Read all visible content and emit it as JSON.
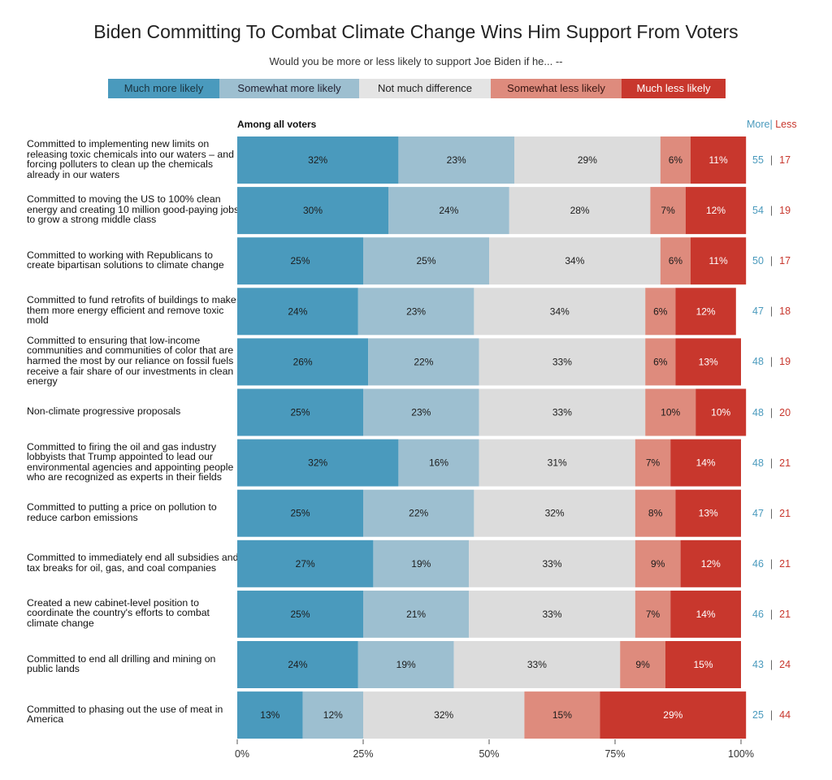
{
  "chart_data": {
    "type": "bar",
    "orientation": "horizontal",
    "stacked": true,
    "title": "Biden Committing To Combat Climate Change Wins Him Support From Voters",
    "subtitle": "Would you be more or less likely to support Joe Biden if he... --",
    "section_label": "Among all voters",
    "more_less_header": {
      "more": "More",
      "less": "Less"
    },
    "series": [
      {
        "name": "Much more likely",
        "color": "#4a9abd"
      },
      {
        "name": "Somewhat more likely",
        "color": "#9dbfd0"
      },
      {
        "name": "Not much difference",
        "color": "#dcdcdc"
      },
      {
        "name": "Somewhat less likely",
        "color": "#de8b7d"
      },
      {
        "name": "Much less likely",
        "color": "#c8372d"
      }
    ],
    "categories": [
      "Committed to implementing new limits on releasing toxic chemicals into our waters – and forcing polluters to clean up the chemicals already in our waters",
      "Committed to moving the US to 100% clean energy and creating 10 million good-paying jobs to grow a strong middle class",
      "Committed to working with Republicans to create bipartisan solutions to climate change",
      "Committed to fund retrofits of buildings to make them more energy efficient and remove toxic mold",
      "Committed to ensuring that low-income communities and communities of color that are harmed the most by our reliance on fossil fuels receive a fair share of our investments in clean energy",
      "Non-climate progressive proposals",
      "Committed to firing the oil and gas industry lobbyists that Trump appointed to lead our environmental agencies and appointing people who are recognized as experts in their fields",
      "Committed to putting a price on pollution to reduce carbon emissions",
      "Committed to immediately end all subsidies and tax breaks for oil, gas, and coal companies",
      "Created a new cabinet-level position to coordinate the country's efforts to combat climate change",
      "Committed to end all drilling and mining on public lands",
      "Committed to phasing out the use of meat in America"
    ],
    "values": [
      [
        32,
        23,
        29,
        6,
        11
      ],
      [
        30,
        24,
        28,
        7,
        12
      ],
      [
        25,
        25,
        34,
        6,
        11
      ],
      [
        24,
        23,
        34,
        6,
        12
      ],
      [
        26,
        22,
        33,
        6,
        13
      ],
      [
        25,
        23,
        33,
        10,
        10
      ],
      [
        32,
        16,
        31,
        7,
        14
      ],
      [
        25,
        22,
        32,
        8,
        13
      ],
      [
        27,
        19,
        33,
        9,
        12
      ],
      [
        25,
        21,
        33,
        7,
        14
      ],
      [
        24,
        19,
        33,
        9,
        15
      ],
      [
        13,
        12,
        32,
        15,
        29
      ]
    ],
    "more": [
      55,
      54,
      50,
      47,
      48,
      48,
      48,
      47,
      46,
      46,
      43,
      25
    ],
    "less": [
      17,
      19,
      17,
      18,
      19,
      20,
      21,
      21,
      21,
      21,
      24,
      44
    ],
    "xlim": [
      0,
      100
    ],
    "xticks": [
      0,
      25,
      50,
      75,
      100
    ],
    "xtick_labels": [
      "0%",
      "25%",
      "50%",
      "75%",
      "100%"
    ]
  }
}
